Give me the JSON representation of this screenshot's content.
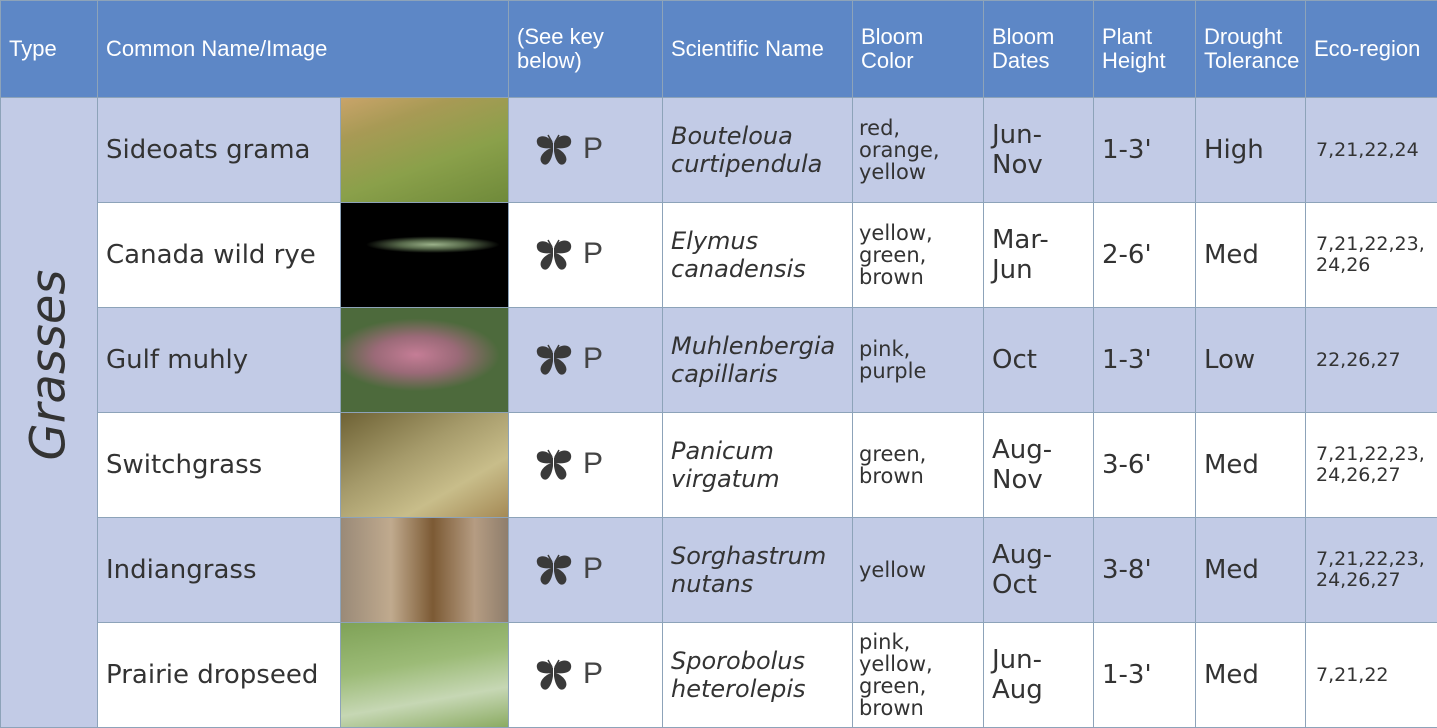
{
  "table": {
    "headers": [
      "Type",
      "Common Name/Image",
      "(See key below)",
      "Scientific Name",
      "Bloom Color",
      "Bloom Dates",
      "Plant Height",
      "Drought Tolerance",
      "Eco-region"
    ],
    "type_label": "Grasses",
    "rows": [
      {
        "common_name": "Sideoats grama",
        "key": "P",
        "scientific_name": "Bouteloua curtipendula",
        "bloom_color": "red, orange, yellow",
        "bloom_dates": "Jun-Nov",
        "plant_height": "1-3'",
        "drought_tolerance": "High",
        "ecoregion": "7,21,22,24"
      },
      {
        "common_name": "Canada wild rye",
        "key": "P",
        "scientific_name": "Elymus canadensis",
        "bloom_color": "yellow, green, brown",
        "bloom_dates": "Mar-Jun",
        "plant_height": "2-6'",
        "drought_tolerance": "Med",
        "ecoregion": "7,21,22,23,24,26"
      },
      {
        "common_name": "Gulf muhly",
        "key": "P",
        "scientific_name": "Muhlenbergia capillaris",
        "bloom_color": "pink, purple",
        "bloom_dates": "Oct",
        "plant_height": "1-3'",
        "drought_tolerance": "Low",
        "ecoregion": "22,26,27"
      },
      {
        "common_name": "Switchgrass",
        "key": "P",
        "scientific_name": "Panicum virgatum",
        "bloom_color": "green, brown",
        "bloom_dates": "Aug-Nov",
        "plant_height": "3-6'",
        "drought_tolerance": "Med",
        "ecoregion": "7,21,22,23,24,26,27"
      },
      {
        "common_name": "Indiangrass",
        "key": "P",
        "scientific_name": "Sorghastrum nutans",
        "bloom_color": "yellow",
        "bloom_dates": "Aug-Oct",
        "plant_height": "3-8'",
        "drought_tolerance": "Med",
        "ecoregion": "7,21,22,23,24,26,27"
      },
      {
        "common_name": "Prairie dropseed",
        "key": "P",
        "scientific_name": "Sporobolus heterolepis",
        "bloom_color": "pink, yellow, green, brown",
        "bloom_dates": "Jun-Aug",
        "plant_height": "1-3'",
        "drought_tolerance": "Med",
        "ecoregion": "7,21,22"
      }
    ]
  }
}
